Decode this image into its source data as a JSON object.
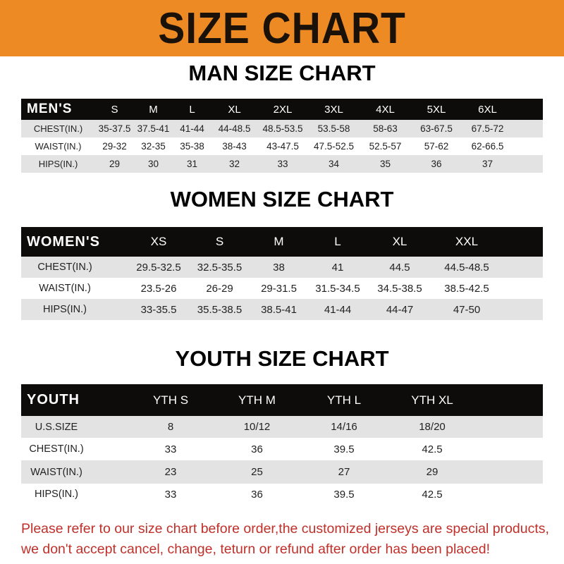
{
  "banner": {
    "title": "SIZE CHART",
    "color": "#ee8a24"
  },
  "tables": [
    {
      "title": "MAN SIZE CHART",
      "header_label": "MEN'S",
      "sizes": [
        "S",
        "M",
        "L",
        "XL",
        "2XL",
        "3XL",
        "4XL",
        "5XL",
        "6XL"
      ],
      "rows": [
        {
          "label": "CHEST(IN.)",
          "values": [
            "35-37.5",
            "37.5-41",
            "41-44",
            "44-48.5",
            "48.5-53.5",
            "53.5-58",
            "58-63",
            "63-67.5",
            "67.5-72"
          ]
        },
        {
          "label": "WAIST(IN.)",
          "values": [
            "29-32",
            "32-35",
            "35-38",
            "38-43",
            "43-47.5",
            "47.5-52.5",
            "52.5-57",
            "57-62",
            "62-66.5"
          ]
        },
        {
          "label": "HIPS(IN.)",
          "values": [
            "29",
            "30",
            "31",
            "32",
            "33",
            "34",
            "35",
            "36",
            "37"
          ]
        }
      ]
    },
    {
      "title": "WOMEN SIZE CHART",
      "header_label": "WOMEN'S",
      "sizes": [
        "XS",
        "S",
        "M",
        "L",
        "XL",
        "XXL"
      ],
      "rows": [
        {
          "label": "CHEST(IN.)",
          "values": [
            "29.5-32.5",
            "32.5-35.5",
            "38",
            "41",
            "44.5",
            "44.5-48.5"
          ]
        },
        {
          "label": "WAIST(IN.)",
          "values": [
            "23.5-26",
            "26-29",
            "29-31.5",
            "31.5-34.5",
            "34.5-38.5",
            "38.5-42.5"
          ]
        },
        {
          "label": "HIPS(IN.)",
          "values": [
            "33-35.5",
            "35.5-38.5",
            "38.5-41",
            "41-44",
            "44-47",
            "47-50"
          ]
        }
      ]
    },
    {
      "title": "YOUTH SIZE CHART",
      "header_label": "YOUTH",
      "sizes": [
        "YTH S",
        "YTH M",
        "YTH L",
        "YTH XL"
      ],
      "rows": [
        {
          "label": "U.S.SIZE",
          "values": [
            "8",
            "10/12",
            "14/16",
            "18/20"
          ]
        },
        {
          "label": "CHEST(IN.)",
          "values": [
            "33",
            "36",
            "39.5",
            "42.5"
          ]
        },
        {
          "label": "WAIST(IN.)",
          "values": [
            "23",
            "25",
            "27",
            "29"
          ]
        },
        {
          "label": "HIPS(IN.)",
          "values": [
            "33",
            "36",
            "39.5",
            "42.5"
          ]
        }
      ]
    }
  ],
  "footer": {
    "line1": "Please refer to our size chart before order,the customized jerseys are special products,",
    "line2": "we don't accept cancel, change, teturn or refund after order has been placed!",
    "color": "#c0302a"
  }
}
